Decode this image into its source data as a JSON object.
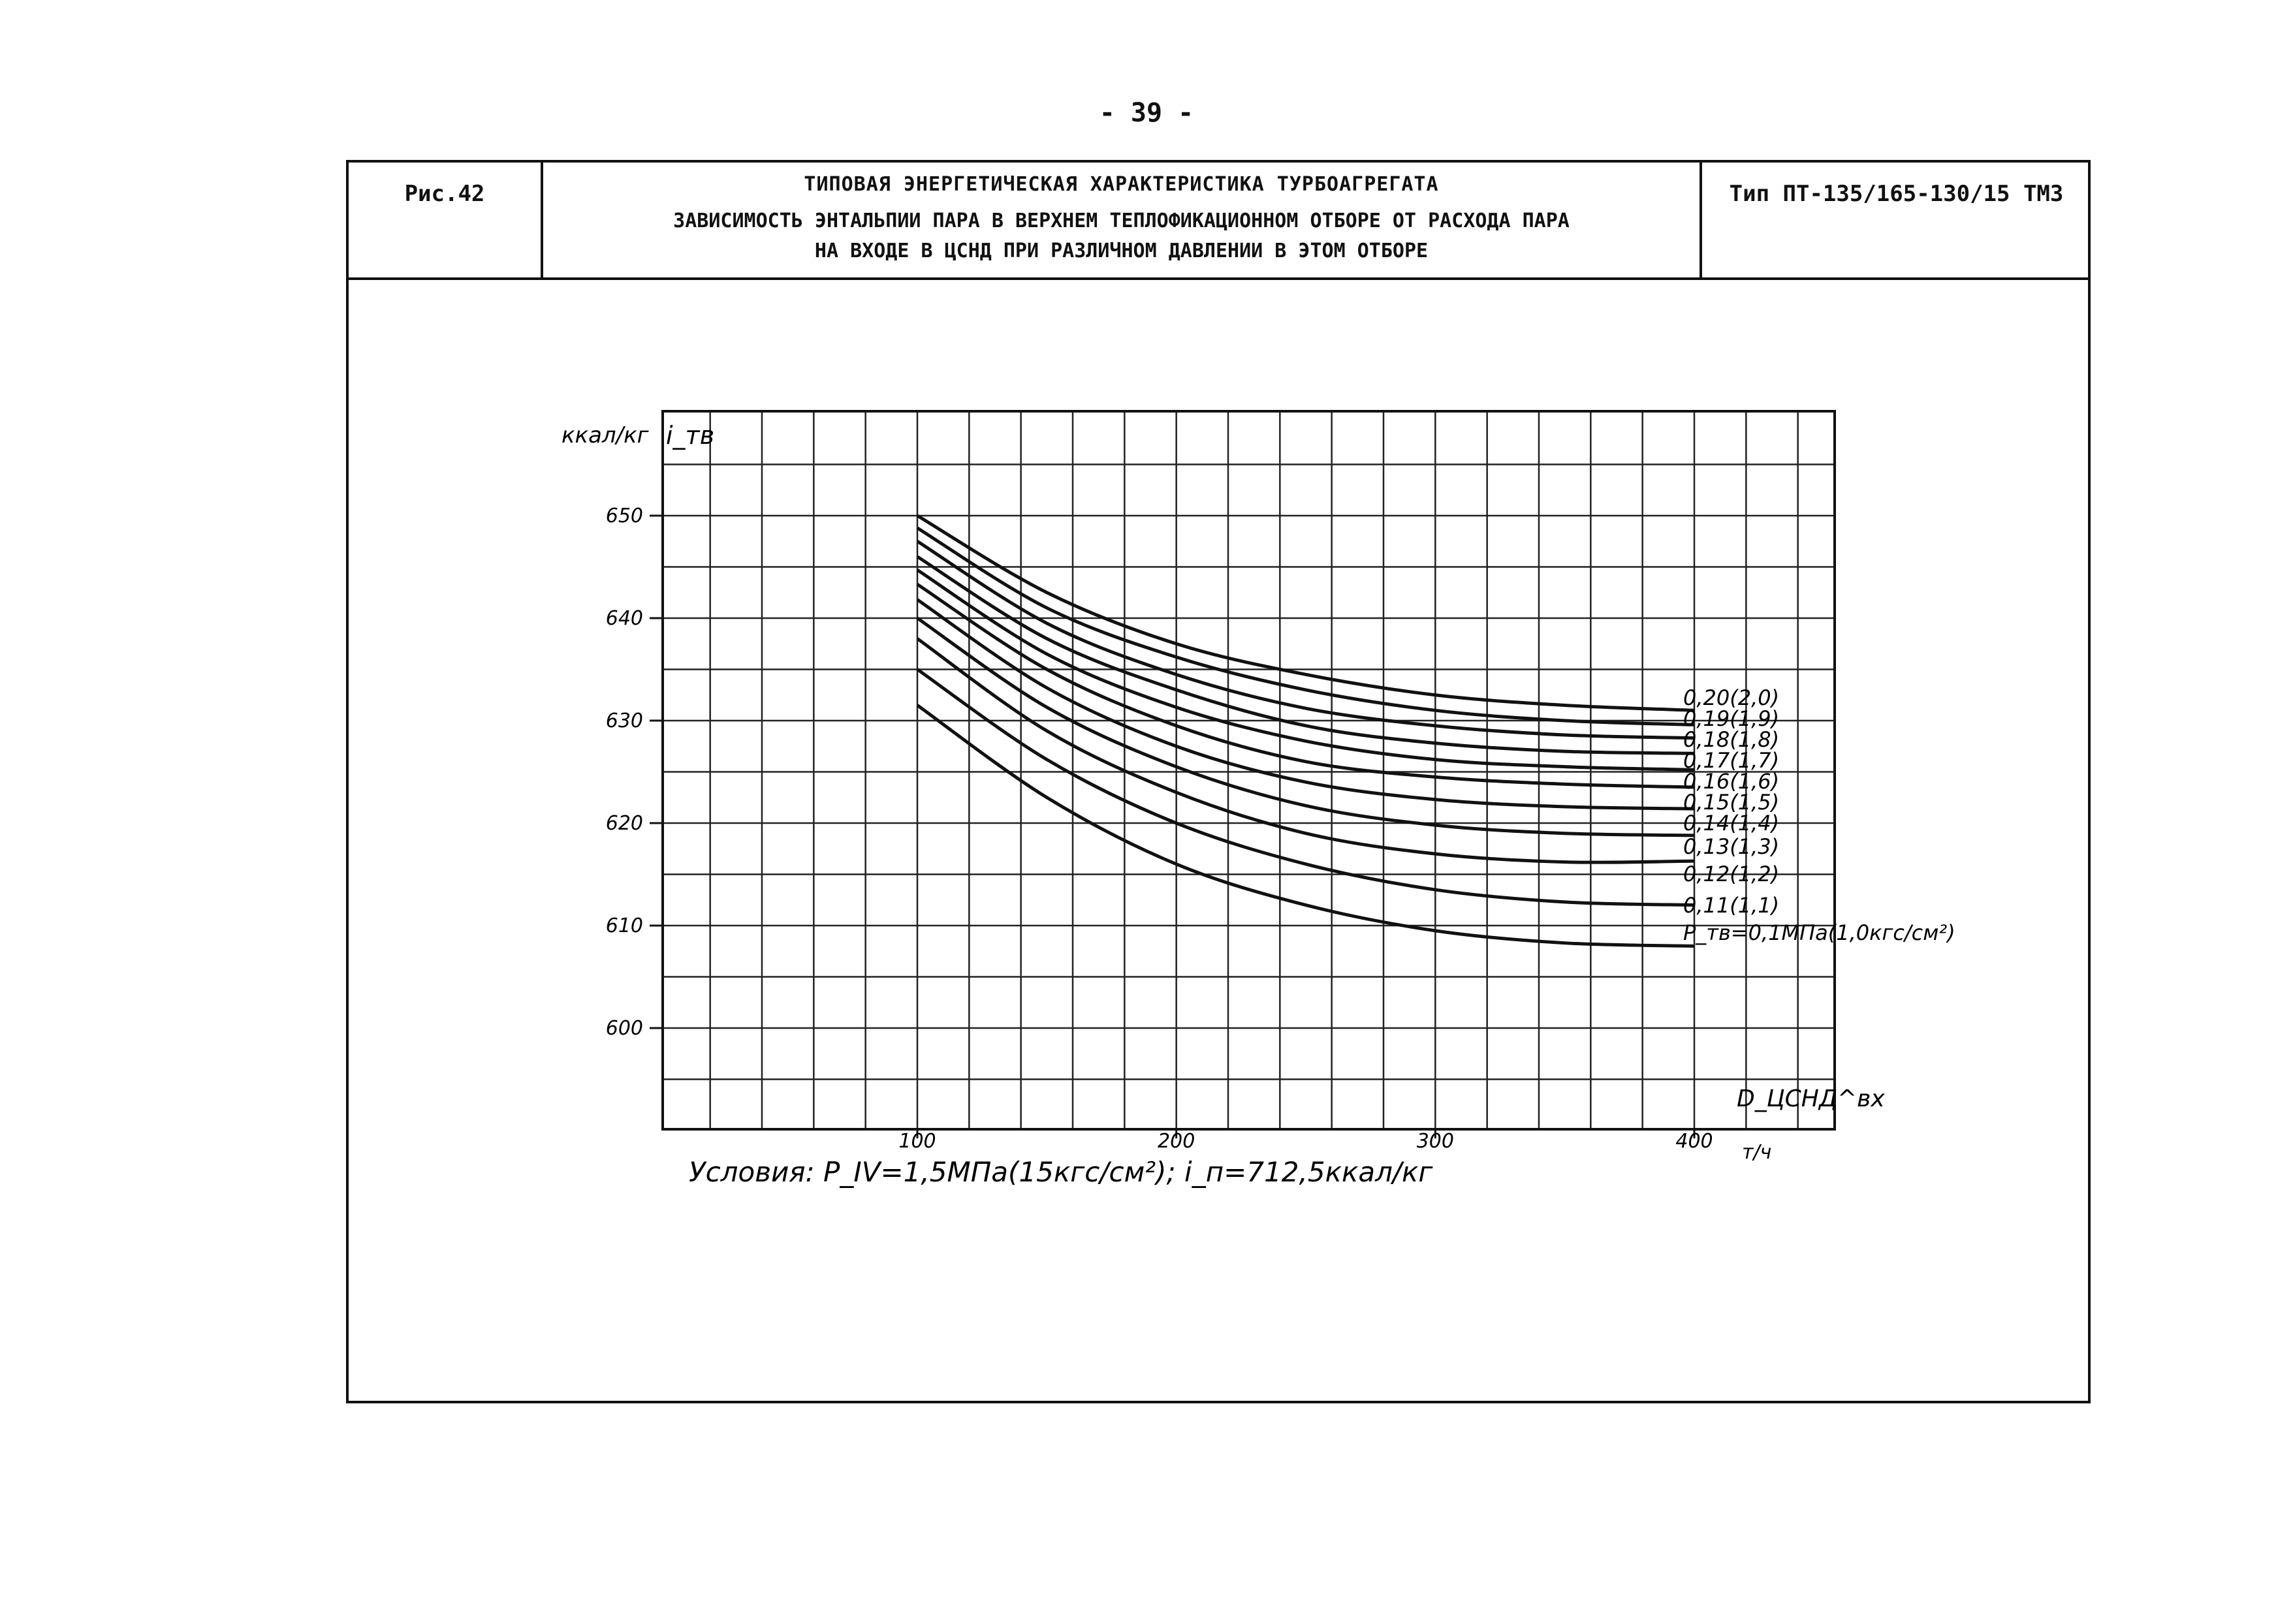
{
  "page": {
    "number": "- 39 -"
  },
  "header": {
    "figure_label": "Рис.42",
    "title_main": "ТИПОВАЯ ЭНЕРГЕТИЧЕСКАЯ ХАРАКТЕРИСТИКА ТУРБОАГРЕГАТА",
    "title_sub_line1": "ЗАВИСИМОСТЬ ЭНТАЛЬПИИ ПАРА В ВЕРХНЕМ ТЕПЛОФИКАЦИОННОМ ОТБОРЕ ОТ РАСХОДА ПАРА",
    "title_sub_line2": "НА ВХОДЕ В ЦСНД ПРИ РАЗЛИЧНОМ ДАВЛЕНИИ В ЭТОМ ОТБОРЕ",
    "type_label": "Тип ПТ-135/165-130/15 ТМЗ"
  },
  "conditions_text": "Условия:  P_IV=1,5МПа(15кгс/см²); i_п=712,5ккал/кг",
  "chart_data": {
    "type": "line",
    "ylabel_unit": "ккал/кг",
    "ylabel_symbol": "i_тв",
    "xlabel_symbol": "D_ЦСНД^вх",
    "xlabel_unit": "т/ч",
    "xlim": [
      -100,
      440
    ],
    "ylim": [
      595,
      655
    ],
    "x_ticks": [
      100,
      200,
      300,
      400
    ],
    "y_ticks": [
      600,
      610,
      620,
      630,
      640,
      650
    ],
    "x_tick_labels": [
      "100",
      "200",
      "300",
      "400"
    ],
    "y_tick_labels": [
      "600",
      "610",
      "620",
      "630",
      "640",
      "650"
    ],
    "grid": true,
    "series": [
      {
        "name": "0,20(2,0)",
        "x": [
          100,
          150,
          200,
          250,
          300,
          350,
          400
        ],
        "y": [
          650.0,
          642.5,
          637.5,
          634.5,
          632.5,
          631.5,
          631.0
        ]
      },
      {
        "name": "0,19(1,9)",
        "x": [
          100,
          150,
          200,
          250,
          300,
          350,
          400
        ],
        "y": [
          648.8,
          641.0,
          636.2,
          633.0,
          631.0,
          630.0,
          629.6
        ]
      },
      {
        "name": "0,18(1,8)",
        "x": [
          100,
          150,
          200,
          250,
          300,
          350,
          400
        ],
        "y": [
          647.5,
          639.5,
          634.5,
          631.2,
          629.5,
          628.6,
          628.3
        ]
      },
      {
        "name": "0,17(1,7)",
        "x": [
          100,
          150,
          200,
          250,
          300,
          350,
          400
        ],
        "y": [
          646.0,
          638.0,
          633.0,
          629.5,
          627.8,
          627.0,
          626.8
        ]
      },
      {
        "name": "0,16(1,6)",
        "x": [
          100,
          150,
          200,
          250,
          300,
          350,
          400
        ],
        "y": [
          644.7,
          636.5,
          631.3,
          628.0,
          626.2,
          625.5,
          625.2
        ]
      },
      {
        "name": "0,15(1,5)",
        "x": [
          100,
          150,
          200,
          250,
          300,
          350,
          400
        ],
        "y": [
          643.3,
          635.0,
          629.5,
          626.0,
          624.5,
          623.8,
          623.5
        ]
      },
      {
        "name": "0,14(1,4)",
        "x": [
          100,
          150,
          200,
          250,
          300,
          350,
          400
        ],
        "y": [
          641.8,
          633.2,
          627.5,
          624.0,
          622.3,
          621.6,
          621.4
        ]
      },
      {
        "name": "0,13(1,3)",
        "x": [
          100,
          150,
          200,
          250,
          300,
          350,
          400
        ],
        "y": [
          640.0,
          631.3,
          625.5,
          621.7,
          619.8,
          619.0,
          618.8
        ]
      },
      {
        "name": "0,12(1,2)",
        "x": [
          100,
          150,
          200,
          250,
          300,
          350,
          400
        ],
        "y": [
          638.0,
          629.0,
          623.0,
          619.0,
          617.0,
          616.2,
          616.3
        ]
      },
      {
        "name": "0,11(1,1)",
        "x": [
          100,
          150,
          200,
          250,
          300,
          350,
          400
        ],
        "y": [
          635.0,
          626.2,
          620.0,
          616.0,
          613.5,
          612.3,
          612.0
        ]
      },
      {
        "name": "P_тв=0,1МПа(1,0кгс/см²)",
        "x": [
          100,
          150,
          200,
          250,
          300,
          350,
          400
        ],
        "y": [
          631.5,
          622.5,
          616.0,
          612.0,
          609.5,
          608.3,
          608.0
        ]
      }
    ]
  }
}
